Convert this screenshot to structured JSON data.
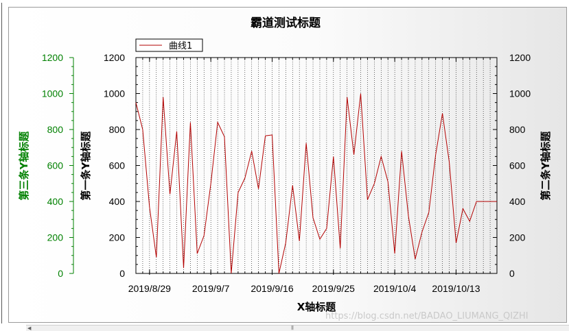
{
  "chart_data": {
    "type": "line",
    "title": "霸道测试标题",
    "xlabel": "X轴标题",
    "ylabel": "第一条Y轴标题",
    "y2label": "第二条Y轴标题",
    "y3label": "第三条Y轴标题",
    "ylim": [
      0,
      1200
    ],
    "yticks": [
      "0",
      "200",
      "400",
      "600",
      "800",
      "1000",
      "1200"
    ],
    "y3_color": "#008000",
    "line_color": "#b20000",
    "grid": "vertical dotted lines at each date",
    "legend_position": "top-left",
    "xlim": [
      "2019-08-27",
      "2019-10-19"
    ],
    "x_tick_labels": [
      "2019/8/29",
      "2019/9/7",
      "2019/9/16",
      "2019/9/25",
      "2019/10/4",
      "2019/10/13"
    ],
    "x_tick_dates": [
      "2019-08-29",
      "2019-09-07",
      "2019-09-16",
      "2019-09-25",
      "2019-10-04",
      "2019-10-13"
    ],
    "series": [
      {
        "name": "曲线1",
        "x": [
          "2019-08-27",
          "2019-08-28",
          "2019-08-29",
          "2019-08-30",
          "2019-08-31",
          "2019-09-01",
          "2019-09-02",
          "2019-09-03",
          "2019-09-04",
          "2019-09-05",
          "2019-09-06",
          "2019-09-07",
          "2019-09-08",
          "2019-09-09",
          "2019-09-10",
          "2019-09-11",
          "2019-09-12",
          "2019-09-13",
          "2019-09-14",
          "2019-09-15",
          "2019-09-16",
          "2019-09-17",
          "2019-09-18",
          "2019-09-19",
          "2019-09-20",
          "2019-09-21",
          "2019-09-22",
          "2019-09-23",
          "2019-09-24",
          "2019-09-25",
          "2019-09-26",
          "2019-09-27",
          "2019-09-28",
          "2019-09-29",
          "2019-09-30",
          "2019-10-01",
          "2019-10-02",
          "2019-10-03",
          "2019-10-04",
          "2019-10-05",
          "2019-10-06",
          "2019-10-07",
          "2019-10-08",
          "2019-10-09",
          "2019-10-10",
          "2019-10-11",
          "2019-10-12",
          "2019-10-13",
          "2019-10-14",
          "2019-10-15",
          "2019-10-16",
          "2019-10-17",
          "2019-10-18",
          "2019-10-19"
        ],
        "values": [
          950,
          800,
          370,
          90,
          980,
          440,
          790,
          30,
          840,
          110,
          210,
          500,
          840,
          760,
          0,
          450,
          530,
          680,
          470,
          765,
          770,
          0,
          170,
          490,
          180,
          725,
          310,
          190,
          250,
          650,
          140,
          980,
          660,
          1000,
          410,
          500,
          650,
          510,
          110,
          680,
          320,
          80,
          230,
          340,
          660,
          890,
          620,
          170,
          360,
          290,
          400,
          400,
          400,
          400
        ]
      }
    ]
  },
  "watermark": "https://blog.csdn.net/BADAO_LIUMANG_QIZHI"
}
